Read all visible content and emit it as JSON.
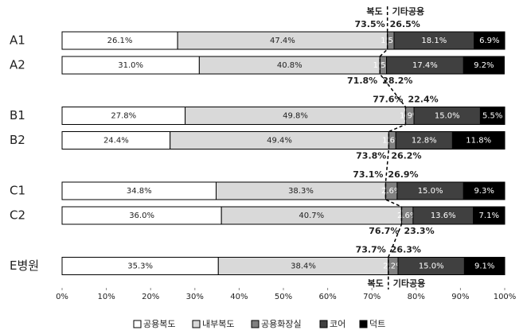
{
  "chart_data": {
    "type": "stacked-bar-horizontal",
    "categories": [
      "A1",
      "A2",
      "B1",
      "B2",
      "C1",
      "C2",
      "E병원"
    ],
    "series": [
      {
        "name": "공용복도",
        "color": "#ffffff",
        "values": [
          26.1,
          31.0,
          27.8,
          24.4,
          34.8,
          36.0,
          35.3
        ],
        "value_labels": [
          "26.1%",
          "31.0%",
          "27.8%",
          "24.4%",
          "34.8%",
          "36.0%",
          "35.3%"
        ]
      },
      {
        "name": "내부복도",
        "color": "#d9d9d9",
        "values": [
          47.4,
          40.8,
          49.8,
          49.4,
          38.3,
          40.7,
          38.4
        ],
        "value_labels": [
          "47.4%",
          "40.8%",
          "49.8%",
          "49.4%",
          "38.3%",
          "40.7%",
          "38.4%"
        ]
      },
      {
        "name": "공용화장실",
        "color": "#808080",
        "values": [
          1.5,
          1.5,
          1.9,
          1.6,
          2.6,
          2.6,
          2.2
        ],
        "value_labels": [
          "1.5%",
          "1.5%",
          "1.9%",
          "1.6%",
          "2.6%",
          "2.6%",
          "2.2%"
        ]
      },
      {
        "name": "코어",
        "color": "#404040",
        "values": [
          18.1,
          17.4,
          15.0,
          12.8,
          15.0,
          13.6,
          15.0
        ],
        "value_labels": [
          "18.1%",
          "17.4%",
          "15.0%",
          "12.8%",
          "15.0%",
          "13.6%",
          "15.0%"
        ]
      },
      {
        "name": "덕트",
        "color": "#000000",
        "values": [
          6.9,
          9.2,
          5.5,
          11.8,
          9.3,
          7.1,
          9.1
        ],
        "value_labels": [
          "6.9%",
          "9.2%",
          "5.5%",
          "11.8%",
          "9.3%",
          "7.1%",
          "9.1%"
        ]
      }
    ],
    "divider_labels": {
      "left": "복도",
      "right": "기타공용"
    },
    "split_labels": [
      {
        "left": "73.5%",
        "right": "26.5%",
        "position": "above"
      },
      {
        "left": "71.8%",
        "right": "28.2%",
        "position": "below"
      },
      {
        "left": "77.6%",
        "right": "22.4%",
        "position": "above"
      },
      {
        "left": "73.8%",
        "right": "26.2%",
        "position": "below"
      },
      {
        "left": "73.1%",
        "right": "26.9%",
        "position": "above"
      },
      {
        "left": "76.7%",
        "right": "23.3%",
        "position": "below"
      },
      {
        "left": "73.7%",
        "right": "26.3%",
        "position": "above"
      }
    ],
    "xlim": [
      0,
      100
    ],
    "xticks": [
      {
        "value": 0,
        "label": "0%"
      },
      {
        "value": 10,
        "label": "10%"
      },
      {
        "value": 20,
        "label": "20%"
      },
      {
        "value": 30,
        "label": "30%"
      },
      {
        "value": 40,
        "label": "40%"
      },
      {
        "value": 50,
        "label": "50%"
      },
      {
        "value": 60,
        "label": "60%"
      },
      {
        "value": 70,
        "label": "70%"
      },
      {
        "value": 80,
        "label": "80%"
      },
      {
        "value": 90,
        "label": "90%"
      },
      {
        "value": 100,
        "label": "100%"
      }
    ],
    "legend": "bottom"
  }
}
